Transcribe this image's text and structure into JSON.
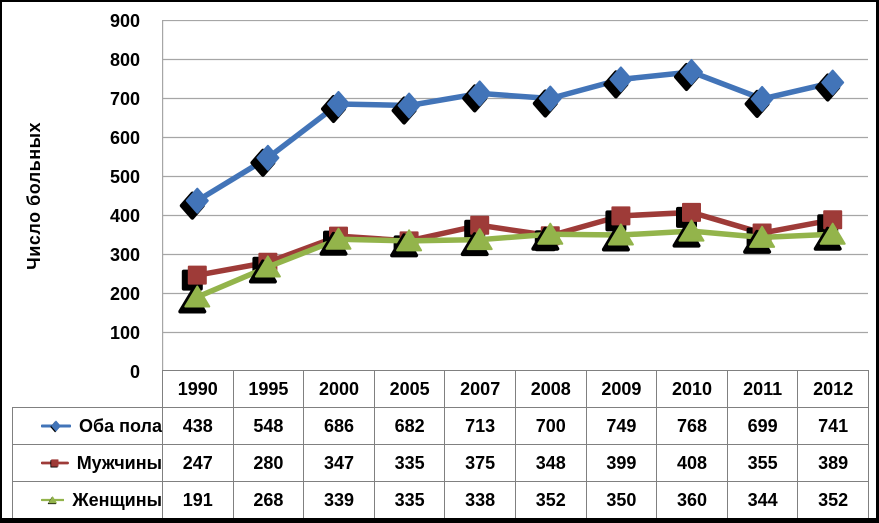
{
  "chart_data": {
    "type": "line",
    "title": "",
    "xlabel": "",
    "ylabel": "Число больных",
    "ylim": [
      0,
      900
    ],
    "ytick_step": 100,
    "grid": true,
    "legend_position": "table-left",
    "categories": [
      "1990",
      "1995",
      "2000",
      "2005",
      "2007",
      "2008",
      "2009",
      "2010",
      "2011",
      "2012"
    ],
    "series": [
      {
        "name": "Оба пола",
        "marker": "diamond",
        "color": "#4274B8",
        "values": [
          438,
          548,
          686,
          682,
          713,
          700,
          749,
          768,
          699,
          741
        ]
      },
      {
        "name": "Мужчины",
        "marker": "square",
        "color": "#9E3B38",
        "values": [
          247,
          280,
          347,
          335,
          375,
          348,
          399,
          408,
          355,
          389
        ]
      },
      {
        "name": "Женщины",
        "marker": "triangle",
        "color": "#93B44B",
        "values": [
          191,
          268,
          339,
          335,
          338,
          352,
          350,
          360,
          344,
          352
        ]
      }
    ],
    "gridline_color": "#A6A6A6",
    "table_border_color": "#808080",
    "marker_shadow_color": "#000000"
  }
}
